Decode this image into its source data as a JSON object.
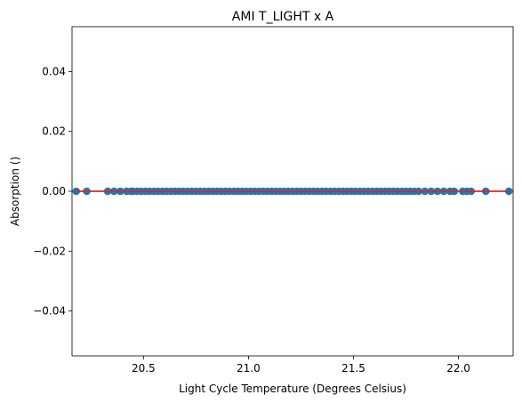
{
  "chart_data": {
    "type": "scatter",
    "title": "AMI T_LIGHT x A",
    "xlabel": "Light Cycle Temperature (Degrees Celsius)",
    "ylabel": "Absorption ()",
    "xlim": [
      20.16,
      22.26
    ],
    "ylim": [
      -0.055,
      0.055
    ],
    "x_ticks": [
      20.5,
      21.0,
      21.5,
      22.0
    ],
    "x_tick_labels": [
      "20.5",
      "21.0",
      "21.5",
      "22.0"
    ],
    "y_ticks": [
      -0.04,
      -0.02,
      0.0,
      0.02,
      0.04
    ],
    "y_tick_labels": [
      "−0.04",
      "−0.02",
      "0.00",
      "0.02",
      "0.04"
    ],
    "grid": false,
    "legend": "none",
    "colors": {
      "points": "#1f77b4",
      "trend_line": "#d62728",
      "axes": "#000000"
    },
    "series": [
      {
        "x": [
          20.18,
          20.23,
          20.33,
          20.36,
          20.39,
          20.42,
          20.44,
          20.45,
          20.47,
          20.49,
          20.51,
          20.53,
          20.55,
          20.57,
          20.59,
          20.61,
          20.63,
          20.65,
          20.67,
          20.69,
          20.71,
          20.73,
          20.75,
          20.77,
          20.79,
          20.81,
          20.83,
          20.85,
          20.87,
          20.89,
          20.91,
          20.93,
          20.95,
          20.97,
          20.99,
          21.01,
          21.03,
          21.05,
          21.07,
          21.09,
          21.11,
          21.13,
          21.15,
          21.17,
          21.19,
          21.21,
          21.23,
          21.25,
          21.27,
          21.29,
          21.31,
          21.33,
          21.35,
          21.37,
          21.39,
          21.41,
          21.43,
          21.45,
          21.47,
          21.49,
          21.51,
          21.53,
          21.55,
          21.57,
          21.59,
          21.61,
          21.63,
          21.65,
          21.67,
          21.69,
          21.71,
          21.73,
          21.75,
          21.77,
          21.79,
          21.81,
          21.84,
          21.87,
          21.9,
          21.93,
          21.96,
          21.98,
          22.02,
          22.04,
          22.06,
          22.13,
          22.24
        ],
        "y": [
          0,
          0,
          0,
          0,
          0,
          0,
          0,
          0,
          0,
          0,
          0,
          0,
          0,
          0,
          0,
          0,
          0,
          0,
          0,
          0,
          0,
          0,
          0,
          0,
          0,
          0,
          0,
          0,
          0,
          0,
          0,
          0,
          0,
          0,
          0,
          0,
          0,
          0,
          0,
          0,
          0,
          0,
          0,
          0,
          0,
          0,
          0,
          0,
          0,
          0,
          0,
          0,
          0,
          0,
          0,
          0,
          0,
          0,
          0,
          0,
          0,
          0,
          0,
          0,
          0,
          0,
          0,
          0,
          0,
          0,
          0,
          0,
          0,
          0,
          0,
          0,
          0,
          0,
          0,
          0,
          0,
          0,
          0,
          0,
          0,
          0,
          0
        ]
      }
    ],
    "trend_line": {
      "x": [
        20.18,
        22.24
      ],
      "y": [
        0,
        0
      ]
    }
  }
}
